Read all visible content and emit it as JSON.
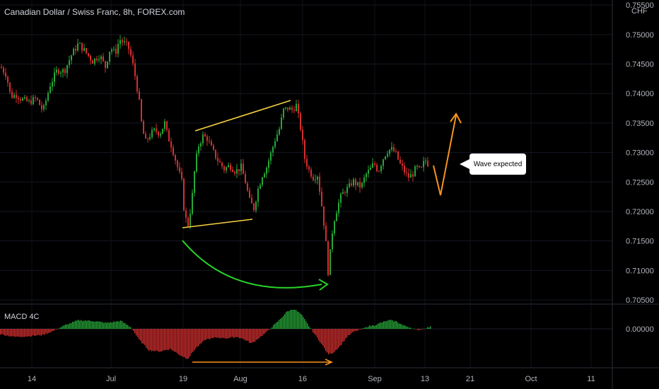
{
  "header": {
    "title": "Canadian Dollar / Swiss Franc, 8h, FOREX.com",
    "currency": "CHF"
  },
  "macd": {
    "label": "MACD 4C"
  },
  "annotation": {
    "text": "Wave expected"
  },
  "colors": {
    "up": "#26a637",
    "down": "#d32f2f",
    "trendline": "#f5d142",
    "curve": "#27d427",
    "projection": "#f7931e",
    "macd_divergence": "#f7931e"
  },
  "chart_data": [
    {
      "type": "candlestick",
      "x_tick_labels": [
        "14",
        "Jul",
        "19",
        "Aug",
        "16",
        "Sep",
        "13",
        "21",
        "Oct",
        "11"
      ],
      "y_ticks": [
        "0.70500",
        "0.71000",
        "0.71500",
        "0.72000",
        "0.72500",
        "0.73000",
        "0.73500",
        "0.74000",
        "0.74500",
        "0.75000",
        "0.75500"
      ],
      "ylim": [
        0.705,
        0.7555
      ],
      "price_path": [
        [
          0,
          0.7445
        ],
        [
          8,
          0.7432
        ],
        [
          14,
          0.7395
        ],
        [
          22,
          0.7398
        ],
        [
          30,
          0.739
        ],
        [
          40,
          0.7385
        ],
        [
          50,
          0.7392
        ],
        [
          60,
          0.737
        ],
        [
          70,
          0.7415
        ],
        [
          80,
          0.744
        ],
        [
          90,
          0.7438
        ],
        [
          100,
          0.7465
        ],
        [
          110,
          0.7485
        ],
        [
          120,
          0.747
        ],
        [
          130,
          0.7455
        ],
        [
          140,
          0.7465
        ],
        [
          148,
          0.7445
        ],
        [
          155,
          0.7478
        ],
        [
          162,
          0.7468
        ],
        [
          168,
          0.7492
        ],
        [
          175,
          0.7485
        ],
        [
          180,
          0.748
        ],
        [
          185,
          0.746
        ],
        [
          190,
          0.743
        ],
        [
          195,
          0.7395
        ],
        [
          200,
          0.734
        ],
        [
          205,
          0.7318
        ],
        [
          210,
          0.7328
        ],
        [
          218,
          0.7338
        ],
        [
          225,
          0.7332
        ],
        [
          232,
          0.735
        ],
        [
          236,
          0.7328
        ],
        [
          242,
          0.731
        ],
        [
          250,
          0.7275
        ],
        [
          256,
          0.725
        ],
        [
          260,
          0.7192
        ],
        [
          265,
          0.7178
        ],
        [
          270,
          0.7215
        ],
        [
          275,
          0.728
        ],
        [
          280,
          0.7312
        ],
        [
          286,
          0.7328
        ],
        [
          292,
          0.7324
        ],
        [
          300,
          0.7302
        ],
        [
          308,
          0.7285
        ],
        [
          316,
          0.7272
        ],
        [
          324,
          0.7278
        ],
        [
          332,
          0.7268
        ],
        [
          340,
          0.7275
        ],
        [
          346,
          0.725
        ],
        [
          352,
          0.7218
        ],
        [
          358,
          0.7205
        ],
        [
          364,
          0.7238
        ],
        [
          370,
          0.7262
        ],
        [
          376,
          0.7275
        ],
        [
          382,
          0.7298
        ],
        [
          388,
          0.7322
        ],
        [
          394,
          0.734
        ],
        [
          400,
          0.7372
        ],
        [
          406,
          0.7375
        ],
        [
          412,
          0.7372
        ],
        [
          418,
          0.738
        ],
        [
          424,
          0.7342
        ],
        [
          430,
          0.729
        ],
        [
          436,
          0.727
        ],
        [
          442,
          0.7258
        ],
        [
          448,
          0.7262
        ],
        [
          452,
          0.7228
        ],
        [
          456,
          0.7192
        ],
        [
          460,
          0.7145
        ],
        [
          463,
          0.7098
        ],
        [
          466,
          0.713
        ],
        [
          470,
          0.7178
        ],
        [
          474,
          0.7198
        ],
        [
          480,
          0.7222
        ],
        [
          486,
          0.7235
        ],
        [
          492,
          0.724
        ],
        [
          498,
          0.7252
        ],
        [
          504,
          0.7245
        ],
        [
          510,
          0.7242
        ],
        [
          516,
          0.7262
        ],
        [
          522,
          0.727
        ],
        [
          528,
          0.7282
        ],
        [
          534,
          0.7268
        ],
        [
          540,
          0.7288
        ],
        [
          546,
          0.7302
        ],
        [
          552,
          0.7306
        ],
        [
          558,
          0.73
        ],
        [
          564,
          0.7282
        ],
        [
          570,
          0.727
        ],
        [
          576,
          0.7258
        ],
        [
          582,
          0.7262
        ],
        [
          588,
          0.7275
        ],
        [
          594,
          0.7268
        ],
        [
          600,
          0.7288
        ],
        [
          606,
          0.7278
        ]
      ]
    },
    {
      "type": "histogram",
      "name": "MACD 4C",
      "y_tick_label": "0.00000",
      "ylim": [
        -0.005,
        0.0035
      ],
      "values_path": [
        [
          0,
          -0.0008
        ],
        [
          20,
          -0.0012
        ],
        [
          40,
          -0.0011
        ],
        [
          60,
          -0.0009
        ],
        [
          75,
          -0.0003
        ],
        [
          90,
          0.0005
        ],
        [
          110,
          0.0013
        ],
        [
          130,
          0.0012
        ],
        [
          150,
          0.0009
        ],
        [
          170,
          0.0012
        ],
        [
          185,
          0.0002
        ],
        [
          195,
          -0.0015
        ],
        [
          210,
          -0.0032
        ],
        [
          225,
          -0.0034
        ],
        [
          240,
          -0.003
        ],
        [
          255,
          -0.004
        ],
        [
          265,
          -0.0045
        ],
        [
          275,
          -0.003
        ],
        [
          290,
          -0.0016
        ],
        [
          305,
          -0.0013
        ],
        [
          320,
          -0.0014
        ],
        [
          335,
          -0.0012
        ],
        [
          345,
          -0.0016
        ],
        [
          355,
          -0.0022
        ],
        [
          365,
          -0.0014
        ],
        [
          375,
          -0.0006
        ],
        [
          385,
          0.0004
        ],
        [
          395,
          0.0014
        ],
        [
          405,
          0.0026
        ],
        [
          415,
          0.003
        ],
        [
          425,
          0.0022
        ],
        [
          435,
          0.0006
        ],
        [
          445,
          -0.0009
        ],
        [
          455,
          -0.0024
        ],
        [
          463,
          -0.0038
        ],
        [
          470,
          -0.0036
        ],
        [
          480,
          -0.0026
        ],
        [
          490,
          -0.0012
        ],
        [
          500,
          -0.0004
        ],
        [
          510,
          -0.0001
        ],
        [
          520,
          0.0004
        ],
        [
          530,
          0.0006
        ],
        [
          540,
          0.001
        ],
        [
          550,
          0.0013
        ],
        [
          560,
          0.0011
        ],
        [
          570,
          0.0005
        ],
        [
          580,
          0.0002
        ],
        [
          590,
          -0.0002
        ],
        [
          600,
          0.0001
        ],
        [
          608,
          0.0003
        ]
      ]
    }
  ]
}
